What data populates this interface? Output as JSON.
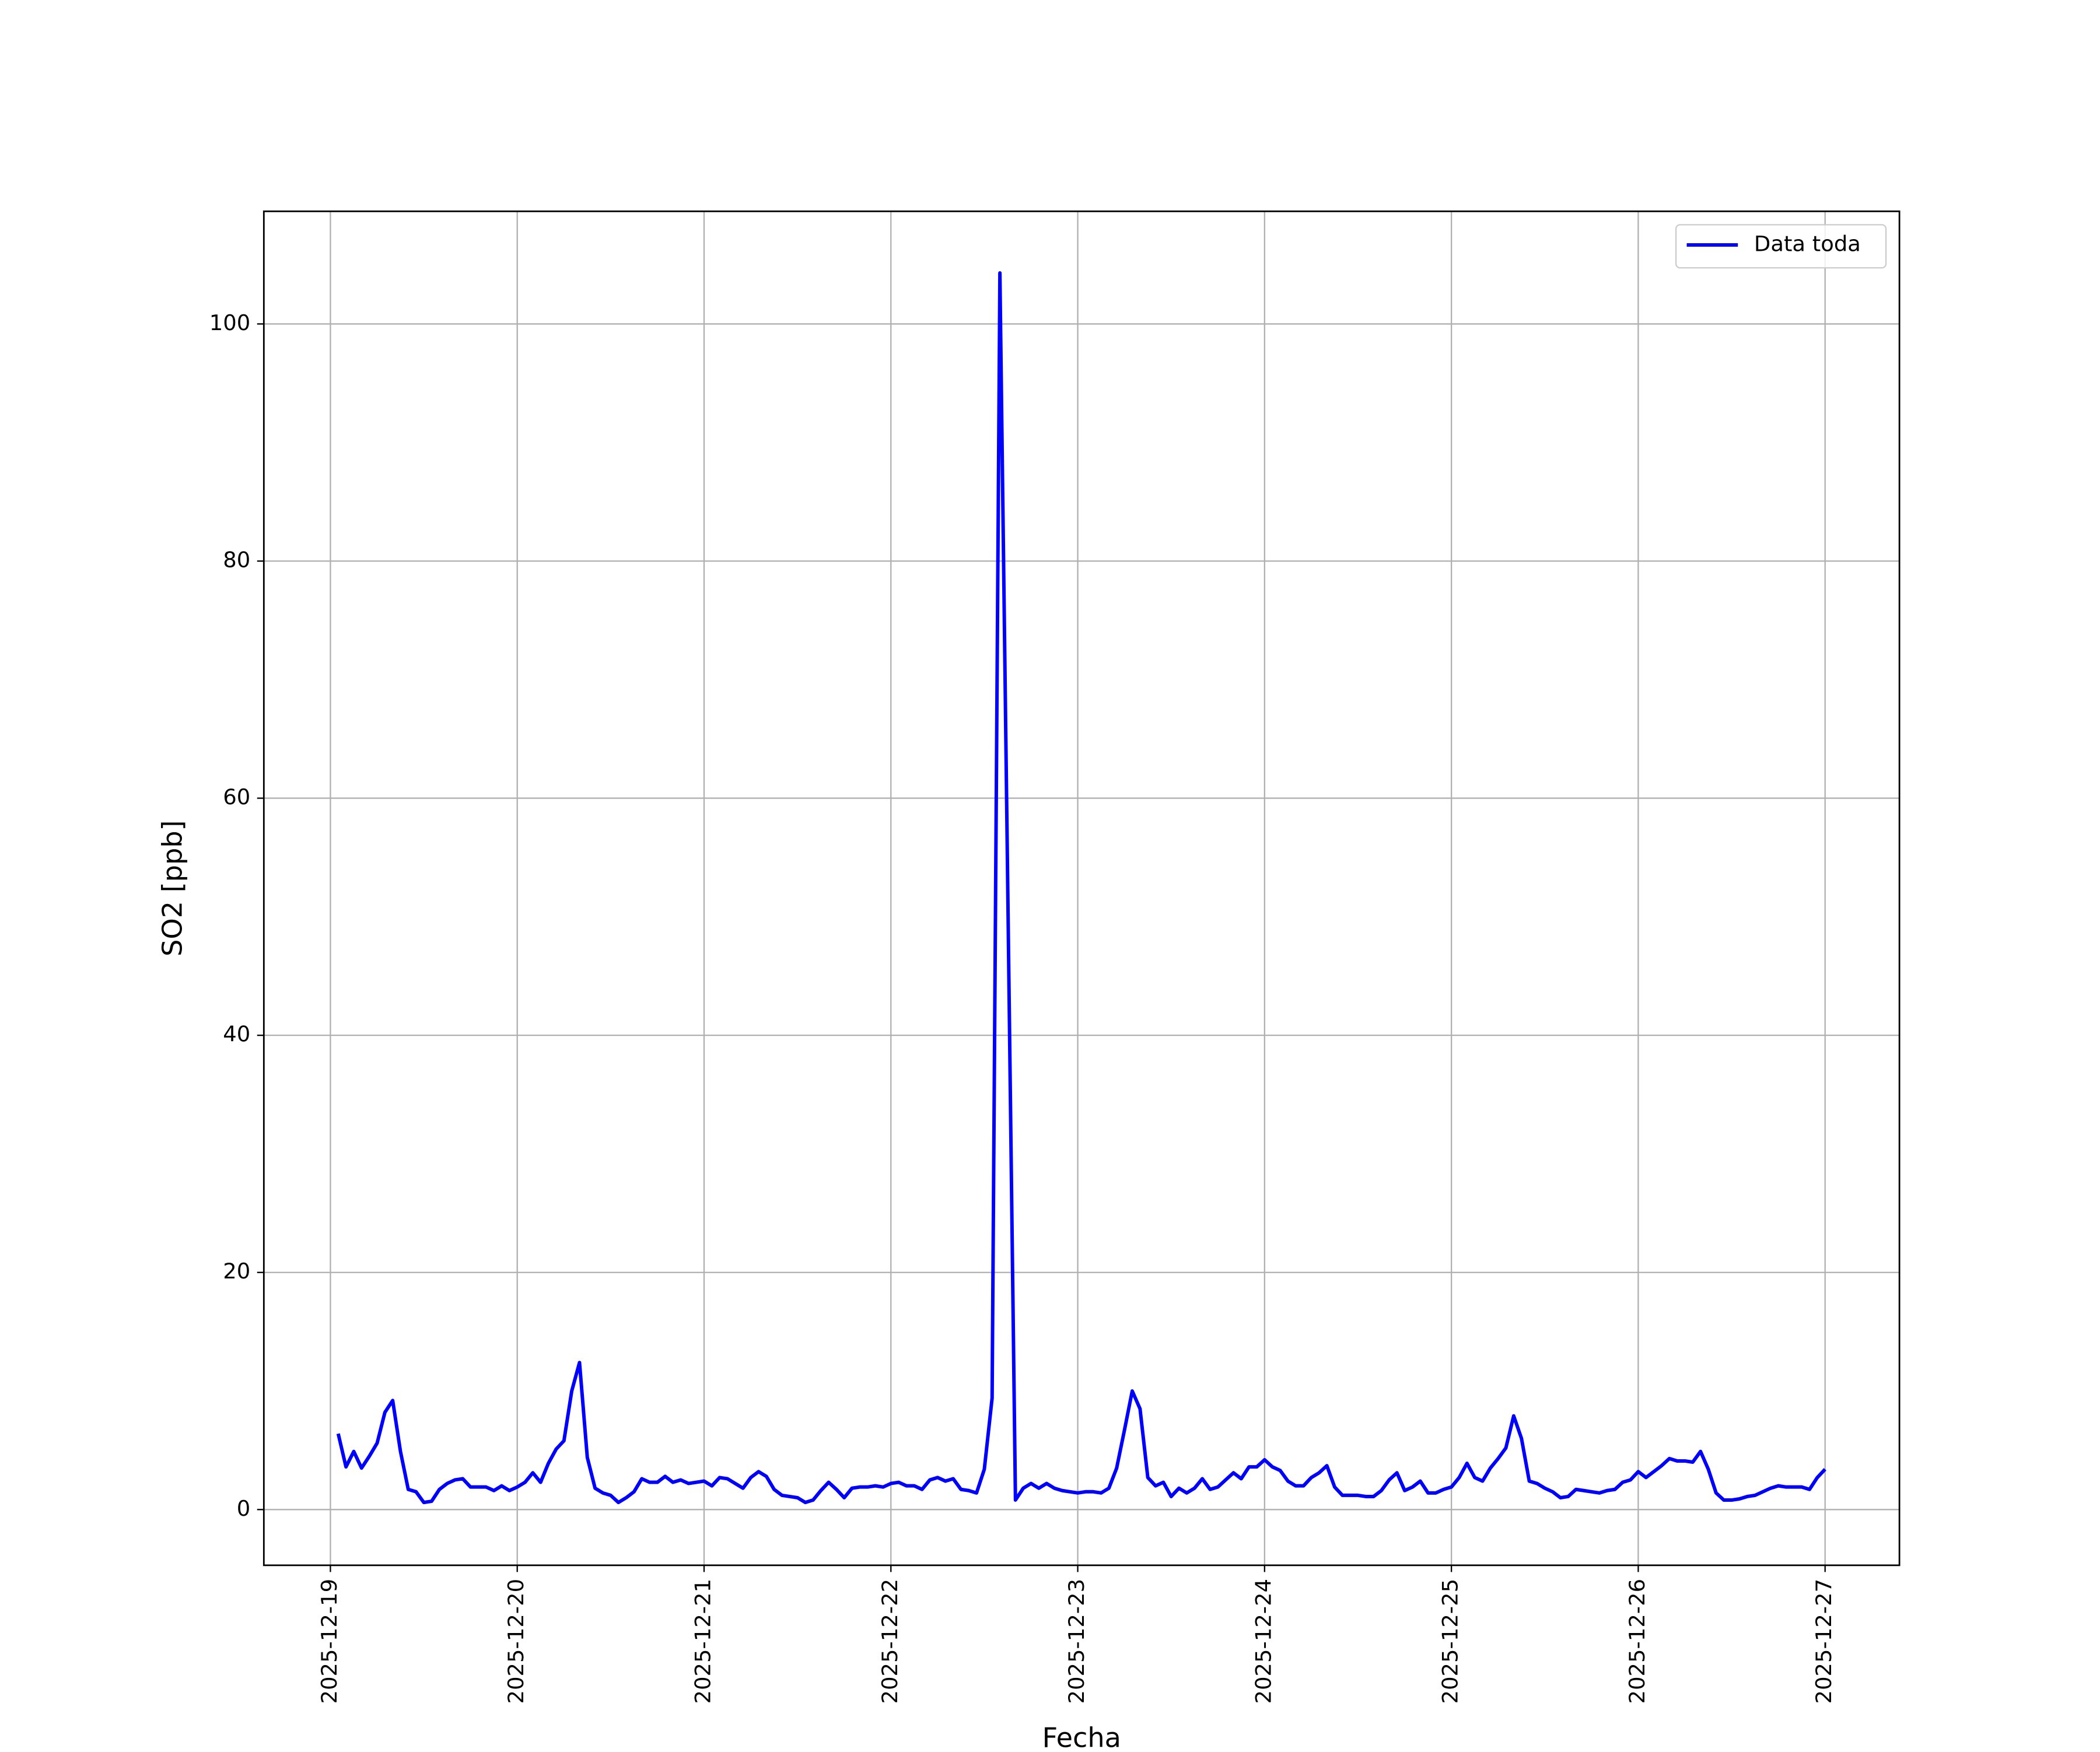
{
  "chart_data": {
    "type": "line",
    "xlabel": "Fecha",
    "ylabel": "SO2 [ppb]",
    "xlim": [
      "2025-12-18 15:27",
      "2025-12-27 09:33"
    ],
    "ylim": [
      -4.7,
      109.5
    ],
    "xticks": [
      "2025-12-19",
      "2025-12-20",
      "2025-12-21",
      "2025-12-22",
      "2025-12-23",
      "2025-12-24",
      "2025-12-25",
      "2025-12-26",
      "2025-12-27"
    ],
    "yticks": [
      0,
      20,
      40,
      60,
      80,
      100
    ],
    "grid": true,
    "legend_position": "upper right",
    "x": [
      "2025-12-19 01:00",
      "2025-12-19 02:00",
      "2025-12-19 03:00",
      "2025-12-19 04:00",
      "2025-12-19 05:00",
      "2025-12-19 06:00",
      "2025-12-19 07:00",
      "2025-12-19 08:00",
      "2025-12-19 09:00",
      "2025-12-19 10:00",
      "2025-12-19 11:00",
      "2025-12-19 12:00",
      "2025-12-19 13:00",
      "2025-12-19 14:00",
      "2025-12-19 15:00",
      "2025-12-19 16:00",
      "2025-12-19 17:00",
      "2025-12-19 18:00",
      "2025-12-19 19:00",
      "2025-12-19 20:00",
      "2025-12-19 21:00",
      "2025-12-19 22:00",
      "2025-12-19 23:00",
      "2025-12-20 00:00",
      "2025-12-20 01:00",
      "2025-12-20 02:00",
      "2025-12-20 03:00",
      "2025-12-20 04:00",
      "2025-12-20 05:00",
      "2025-12-20 06:00",
      "2025-12-20 07:00",
      "2025-12-20 08:00",
      "2025-12-20 09:00",
      "2025-12-20 10:00",
      "2025-12-20 11:00",
      "2025-12-20 12:00",
      "2025-12-20 13:00",
      "2025-12-20 14:00",
      "2025-12-20 15:00",
      "2025-12-20 16:00",
      "2025-12-20 17:00",
      "2025-12-20 18:00",
      "2025-12-20 19:00",
      "2025-12-20 20:00",
      "2025-12-20 21:00",
      "2025-12-20 22:00",
      "2025-12-20 23:00",
      "2025-12-21 00:00",
      "2025-12-21 01:00",
      "2025-12-21 02:00",
      "2025-12-21 03:00",
      "2025-12-21 04:00",
      "2025-12-21 05:00",
      "2025-12-21 06:00",
      "2025-12-21 07:00",
      "2025-12-21 08:00",
      "2025-12-21 09:00",
      "2025-12-21 10:00",
      "2025-12-21 11:00",
      "2025-12-21 12:00",
      "2025-12-21 13:00",
      "2025-12-21 14:00",
      "2025-12-21 15:00",
      "2025-12-21 16:00",
      "2025-12-21 17:00",
      "2025-12-21 18:00",
      "2025-12-21 19:00",
      "2025-12-21 20:00",
      "2025-12-21 21:00",
      "2025-12-21 22:00",
      "2025-12-21 23:00",
      "2025-12-22 00:00",
      "2025-12-22 01:00",
      "2025-12-22 02:00",
      "2025-12-22 03:00",
      "2025-12-22 04:00",
      "2025-12-22 05:00",
      "2025-12-22 06:00",
      "2025-12-22 07:00",
      "2025-12-22 08:00",
      "2025-12-22 09:00",
      "2025-12-22 10:00",
      "2025-12-22 11:00",
      "2025-12-22 12:00",
      "2025-12-22 13:00",
      "2025-12-22 14:00",
      "2025-12-22 15:00",
      "2025-12-22 16:00",
      "2025-12-22 17:00",
      "2025-12-22 18:00",
      "2025-12-22 19:00",
      "2025-12-22 20:00",
      "2025-12-22 21:00",
      "2025-12-22 22:00",
      "2025-12-22 23:00",
      "2025-12-23 00:00",
      "2025-12-23 01:00",
      "2025-12-23 02:00",
      "2025-12-23 03:00",
      "2025-12-23 04:00",
      "2025-12-23 05:00",
      "2025-12-23 06:00",
      "2025-12-23 07:00",
      "2025-12-23 08:00",
      "2025-12-23 09:00",
      "2025-12-23 10:00",
      "2025-12-23 11:00",
      "2025-12-23 12:00",
      "2025-12-23 13:00",
      "2025-12-23 14:00",
      "2025-12-23 15:00",
      "2025-12-23 16:00",
      "2025-12-23 17:00",
      "2025-12-23 18:00",
      "2025-12-23 19:00",
      "2025-12-23 20:00",
      "2025-12-23 21:00",
      "2025-12-23 22:00",
      "2025-12-23 23:00",
      "2025-12-24 00:00",
      "2025-12-24 01:00",
      "2025-12-24 02:00",
      "2025-12-24 03:00",
      "2025-12-24 04:00",
      "2025-12-24 05:00",
      "2025-12-24 06:00",
      "2025-12-24 07:00",
      "2025-12-24 08:00",
      "2025-12-24 09:00",
      "2025-12-24 10:00",
      "2025-12-24 11:00",
      "2025-12-24 12:00",
      "2025-12-24 13:00",
      "2025-12-24 14:00",
      "2025-12-24 15:00",
      "2025-12-24 16:00",
      "2025-12-24 17:00",
      "2025-12-24 18:00",
      "2025-12-24 19:00",
      "2025-12-24 20:00",
      "2025-12-24 21:00",
      "2025-12-24 22:00",
      "2025-12-24 23:00",
      "2025-12-25 00:00",
      "2025-12-25 01:00",
      "2025-12-25 02:00",
      "2025-12-25 03:00",
      "2025-12-25 04:00",
      "2025-12-25 05:00",
      "2025-12-25 06:00",
      "2025-12-25 07:00",
      "2025-12-25 08:00",
      "2025-12-25 09:00",
      "2025-12-25 10:00",
      "2025-12-25 11:00",
      "2025-12-25 12:00",
      "2025-12-25 13:00",
      "2025-12-25 14:00",
      "2025-12-25 15:00",
      "2025-12-25 16:00",
      "2025-12-25 17:00",
      "2025-12-25 18:00",
      "2025-12-25 19:00",
      "2025-12-25 20:00",
      "2025-12-25 21:00",
      "2025-12-25 22:00",
      "2025-12-25 23:00",
      "2025-12-26 00:00",
      "2025-12-26 01:00",
      "2025-12-26 02:00",
      "2025-12-26 03:00",
      "2025-12-26 04:00",
      "2025-12-26 05:00",
      "2025-12-26 06:00",
      "2025-12-26 07:00",
      "2025-12-26 08:00",
      "2025-12-26 09:00",
      "2025-12-26 10:00",
      "2025-12-26 11:00",
      "2025-12-26 12:00",
      "2025-12-26 13:00",
      "2025-12-26 14:00",
      "2025-12-26 15:00",
      "2025-12-26 16:00",
      "2025-12-26 17:00",
      "2025-12-26 18:00",
      "2025-12-26 19:00",
      "2025-12-26 20:00",
      "2025-12-26 21:00",
      "2025-12-26 22:00",
      "2025-12-26 23:00",
      "2025-12-27 00:00"
    ],
    "series": [
      {
        "name": "Data toda",
        "color": "#0000ff",
        "values": [
          6.4,
          3.6,
          4.9,
          3.5,
          4.5,
          5.6,
          8.2,
          9.2,
          4.9,
          1.7,
          1.5,
          0.6,
          0.7,
          1.7,
          2.2,
          2.5,
          2.6,
          1.9,
          1.9,
          1.9,
          1.6,
          2.0,
          1.6,
          1.9,
          2.3,
          3.1,
          2.3,
          3.9,
          5.1,
          5.8,
          10.0,
          12.4,
          4.4,
          1.8,
          1.4,
          1.2,
          0.6,
          1.0,
          1.5,
          2.6,
          2.3,
          2.3,
          2.8,
          2.3,
          2.5,
          2.2,
          2.3,
          2.4,
          2.0,
          2.7,
          2.6,
          2.2,
          1.8,
          2.7,
          3.2,
          2.8,
          1.7,
          1.2,
          1.1,
          1.0,
          0.6,
          0.8,
          1.6,
          2.3,
          1.7,
          1.0,
          1.8,
          1.9,
          1.9,
          2.0,
          1.9,
          2.2,
          2.3,
          2.0,
          2.0,
          1.7,
          2.5,
          2.7,
          2.4,
          2.6,
          1.7,
          1.6,
          1.4,
          3.4,
          9.4,
          104.3,
          52.9,
          0.8,
          1.8,
          2.2,
          1.8,
          2.2,
          1.8,
          1.6,
          1.5,
          1.4,
          1.5,
          1.5,
          1.4,
          1.8,
          3.5,
          6.7,
          10.0,
          8.5,
          2.7,
          2.0,
          2.3,
          1.1,
          1.8,
          1.4,
          1.8,
          2.6,
          1.7,
          1.9,
          2.5,
          3.1,
          2.6,
          3.6,
          3.6,
          4.2,
          3.6,
          3.3,
          2.4,
          2.0,
          2.0,
          2.7,
          3.1,
          3.7,
          1.9,
          1.2,
          1.2,
          1.2,
          1.1,
          1.1,
          1.6,
          2.5,
          3.1,
          1.6,
          1.9,
          2.4,
          1.4,
          1.4,
          1.7,
          1.9,
          2.7,
          3.9,
          2.7,
          2.4,
          3.5,
          4.3,
          5.2,
          7.9,
          6.0,
          2.4,
          2.2,
          1.8,
          1.5,
          1.0,
          1.1,
          1.7,
          1.6,
          1.5,
          1.4,
          1.6,
          1.7,
          2.3,
          2.5,
          3.2,
          2.7,
          3.2,
          3.7,
          4.3,
          4.1,
          4.1,
          4.0,
          4.9,
          3.4,
          1.4,
          0.8,
          0.8,
          0.9,
          1.1,
          1.2,
          1.5,
          1.8,
          2.0,
          1.9,
          1.9,
          1.9,
          1.7,
          2.7,
          3.4
        ]
      }
    ]
  }
}
